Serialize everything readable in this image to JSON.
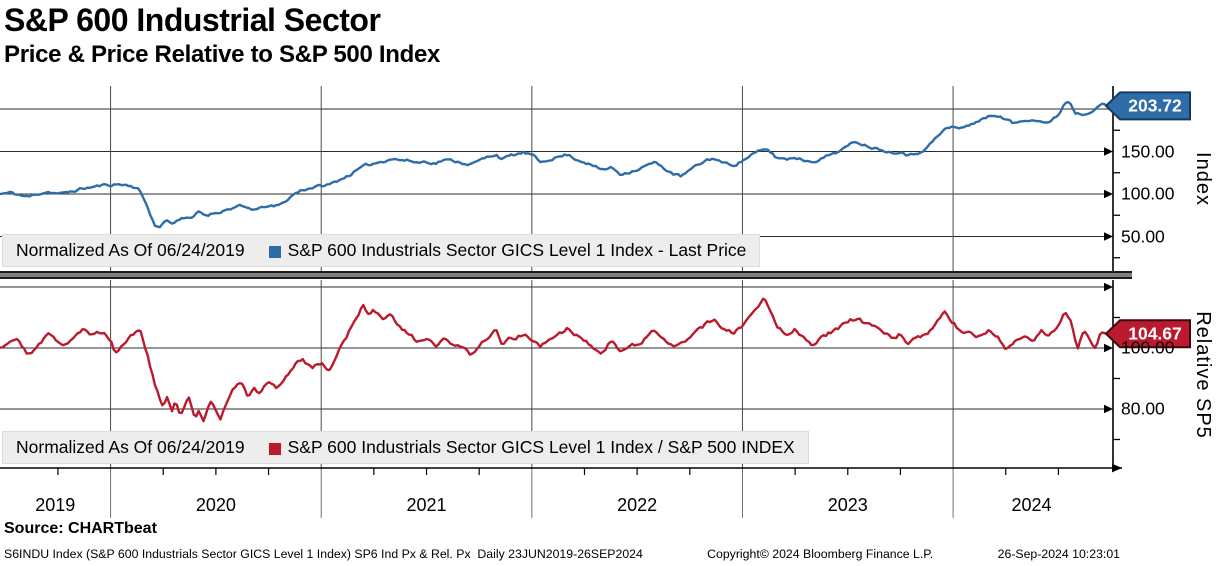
{
  "header": {
    "title": "S&P 600 Industrial Sector",
    "subtitle": "Price & Price Relative to S&P 500 Index"
  },
  "colors": {
    "index_line": "#2E6DA8",
    "index_tag_border": "#15395C",
    "relative_line": "#BB1A2E",
    "relative_tag_border": "#3E060F",
    "legend_bg": "#EDEDED",
    "grid": "#2B2B2B"
  },
  "panels": {
    "top": {
      "axis_title": "Index",
      "normalized": "Normalized As Of 06/24/2019",
      "series_label": "S&P 600 Industrials Sector GICS Level 1 Index - Last Price",
      "last_price_label": "203.72",
      "ticks": [
        {
          "value": 150,
          "label": "150.00"
        },
        {
          "value": 100,
          "label": "100.00"
        },
        {
          "value": 50,
          "label": "50.00"
        }
      ]
    },
    "bottom": {
      "axis_title": "Relative SP5",
      "normalized": "Normalized As Of 06/24/2019",
      "series_label": "S&P 600 Industrials Sector GICS Level 1 Index / S&P 500 INDEX",
      "last_price_label": "104.67",
      "ticks": [
        {
          "value": 100,
          "label": "100.00"
        },
        {
          "value": 80,
          "label": "80.00"
        }
      ]
    }
  },
  "x_axis": {
    "years": [
      "2019",
      "2020",
      "2021",
      "2022",
      "2023",
      "2024"
    ],
    "range": "23JUN2019-26SEP2024"
  },
  "footer": {
    "source": "Source: CHARTbeat",
    "description": "S6INDU Index (S&P 600 Industrials Sector GICS Level 1 Index) SP6 Ind Px & Rel. Px  Daily 23JUN2019-26SEP2024",
    "copyright": "Copyright© 2024 Bloomberg Finance L.P.",
    "timestamp": "26-Sep-2024 10:23:01"
  },
  "chart_data": [
    {
      "type": "line",
      "panel": "top",
      "title": "S&P 600 Industrials Sector GICS Level 1 Index - Last Price",
      "normalized_as_of": "06/24/2019",
      "color": "#2E6DA8",
      "tag_border": "#15395C",
      "last_price": 203.72,
      "ylabel": "Index",
      "ylim": [
        5,
        225
      ],
      "yticks": [
        50,
        100,
        150,
        200
      ],
      "x_unit": "decimal_year",
      "x_range": [
        2019.475,
        2024.745
      ],
      "seed": 11,
      "noise": 3.2,
      "points": [
        [
          2019.48,
          100
        ],
        [
          2019.53,
          101.5
        ],
        [
          2019.57,
          98.5
        ],
        [
          2019.61,
          96.5
        ],
        [
          2019.66,
          100.5
        ],
        [
          2019.7,
          103
        ],
        [
          2019.74,
          101
        ],
        [
          2019.78,
          100.5
        ],
        [
          2019.83,
          104
        ],
        [
          2019.87,
          106.5
        ],
        [
          2019.91,
          108
        ],
        [
          2019.96,
          110
        ],
        [
          2020.0,
          111
        ],
        [
          2020.04,
          111.5
        ],
        [
          2020.09,
          110
        ],
        [
          2020.13,
          107
        ],
        [
          2020.17,
          88
        ],
        [
          2020.21,
          63
        ],
        [
          2020.23,
          60
        ],
        [
          2020.26,
          69
        ],
        [
          2020.3,
          66
        ],
        [
          2020.34,
          73
        ],
        [
          2020.38,
          70
        ],
        [
          2020.42,
          79
        ],
        [
          2020.45,
          75
        ],
        [
          2020.49,
          77.5
        ],
        [
          2020.53,
          80
        ],
        [
          2020.57,
          83
        ],
        [
          2020.61,
          85.5
        ],
        [
          2020.65,
          83
        ],
        [
          2020.7,
          81.5
        ],
        [
          2020.74,
          86
        ],
        [
          2020.78,
          85
        ],
        [
          2020.82,
          89
        ],
        [
          2020.86,
          98
        ],
        [
          2020.9,
          104
        ],
        [
          2020.95,
          107.5
        ],
        [
          2021.0,
          109.5
        ],
        [
          2021.04,
          111
        ],
        [
          2021.08,
          116
        ],
        [
          2021.13,
          122
        ],
        [
          2021.17,
          128
        ],
        [
          2021.21,
          133
        ],
        [
          2021.25,
          136
        ],
        [
          2021.29,
          138.5
        ],
        [
          2021.33,
          142
        ],
        [
          2021.38,
          140
        ],
        [
          2021.42,
          139
        ],
        [
          2021.46,
          137
        ],
        [
          2021.5,
          138.5
        ],
        [
          2021.54,
          136
        ],
        [
          2021.58,
          140
        ],
        [
          2021.63,
          139
        ],
        [
          2021.67,
          137
        ],
        [
          2021.71,
          135
        ],
        [
          2021.75,
          139
        ],
        [
          2021.79,
          143.5
        ],
        [
          2021.83,
          147
        ],
        [
          2021.86,
          141
        ],
        [
          2021.9,
          145
        ],
        [
          2021.96,
          148.5
        ],
        [
          2022.0,
          146
        ],
        [
          2022.04,
          137
        ],
        [
          2022.08,
          141
        ],
        [
          2022.13,
          144
        ],
        [
          2022.17,
          146.5
        ],
        [
          2022.21,
          141
        ],
        [
          2022.25,
          138
        ],
        [
          2022.29,
          133
        ],
        [
          2022.33,
          128.5
        ],
        [
          2022.38,
          131
        ],
        [
          2022.42,
          123.5
        ],
        [
          2022.46,
          126
        ],
        [
          2022.5,
          129
        ],
        [
          2022.54,
          133
        ],
        [
          2022.58,
          137
        ],
        [
          2022.63,
          130
        ],
        [
          2022.67,
          124
        ],
        [
          2022.71,
          120.5
        ],
        [
          2022.75,
          128
        ],
        [
          2022.79,
          134
        ],
        [
          2022.83,
          140
        ],
        [
          2022.87,
          142
        ],
        [
          2022.91,
          136
        ],
        [
          2022.96,
          134.5
        ],
        [
          2023.0,
          139
        ],
        [
          2023.04,
          146
        ],
        [
          2023.08,
          150
        ],
        [
          2023.12,
          152
        ],
        [
          2023.16,
          143
        ],
        [
          2023.21,
          141
        ],
        [
          2023.25,
          143.5
        ],
        [
          2023.29,
          140
        ],
        [
          2023.33,
          138.5
        ],
        [
          2023.38,
          142
        ],
        [
          2023.42,
          147
        ],
        [
          2023.46,
          151
        ],
        [
          2023.5,
          156
        ],
        [
          2023.54,
          162
        ],
        [
          2023.58,
          158
        ],
        [
          2023.63,
          154
        ],
        [
          2023.67,
          152
        ],
        [
          2023.71,
          148.5
        ],
        [
          2023.75,
          151
        ],
        [
          2023.79,
          145.5
        ],
        [
          2023.83,
          148
        ],
        [
          2023.88,
          156
        ],
        [
          2023.92,
          166
        ],
        [
          2023.96,
          176
        ],
        [
          2024.0,
          179
        ],
        [
          2024.04,
          177
        ],
        [
          2024.08,
          182
        ],
        [
          2024.13,
          187
        ],
        [
          2024.17,
          191
        ],
        [
          2024.21,
          193
        ],
        [
          2024.25,
          188
        ],
        [
          2024.29,
          182.5
        ],
        [
          2024.33,
          186
        ],
        [
          2024.38,
          189
        ],
        [
          2024.42,
          185.5
        ],
        [
          2024.46,
          184
        ],
        [
          2024.5,
          193
        ],
        [
          2024.53,
          207
        ],
        [
          2024.55,
          210
        ],
        [
          2024.58,
          196
        ],
        [
          2024.62,
          194
        ],
        [
          2024.66,
          199
        ],
        [
          2024.7,
          206
        ],
        [
          2024.73,
          203.72
        ]
      ]
    },
    {
      "type": "line",
      "panel": "bottom",
      "title": "S&P 600 Industrials Sector GICS Level 1 Index / S&P 500 INDEX",
      "normalized_as_of": "06/24/2019",
      "color": "#BB1A2E",
      "tag_border": "#3E060F",
      "last_price": 104.67,
      "ylabel": "Relative SP5",
      "ylim": [
        61,
        122
      ],
      "yticks": [
        70,
        80,
        90,
        100,
        110,
        120
      ],
      "x_unit": "decimal_year",
      "x_range": [
        2019.475,
        2024.745
      ],
      "seed": 29,
      "noise": 1.4,
      "points": [
        [
          2019.48,
          100.5
        ],
        [
          2019.52,
          102.5
        ],
        [
          2019.56,
          103.5
        ],
        [
          2019.6,
          99
        ],
        [
          2019.63,
          98
        ],
        [
          2019.67,
          102
        ],
        [
          2019.71,
          104.5
        ],
        [
          2019.75,
          102.5
        ],
        [
          2019.79,
          101.5
        ],
        [
          2019.83,
          104.5
        ],
        [
          2019.87,
          106
        ],
        [
          2019.91,
          104
        ],
        [
          2019.96,
          105.5
        ],
        [
          2020.0,
          103
        ],
        [
          2020.02,
          98.5
        ],
        [
          2020.06,
          101.5
        ],
        [
          2020.1,
          104.5
        ],
        [
          2020.14,
          106
        ],
        [
          2020.17,
          99
        ],
        [
          2020.21,
          88
        ],
        [
          2020.23,
          84
        ],
        [
          2020.25,
          80
        ],
        [
          2020.27,
          84
        ],
        [
          2020.29,
          79
        ],
        [
          2020.31,
          82.5
        ],
        [
          2020.33,
          78
        ],
        [
          2020.35,
          81
        ],
        [
          2020.37,
          83.5
        ],
        [
          2020.4,
          77
        ],
        [
          2020.42,
          80.5
        ],
        [
          2020.44,
          76
        ],
        [
          2020.46,
          80
        ],
        [
          2020.48,
          83.5
        ],
        [
          2020.5,
          79
        ],
        [
          2020.52,
          76.5
        ],
        [
          2020.55,
          82
        ],
        [
          2020.58,
          86
        ],
        [
          2020.62,
          88.5
        ],
        [
          2020.65,
          84
        ],
        [
          2020.68,
          87
        ],
        [
          2020.71,
          84.5
        ],
        [
          2020.75,
          89
        ],
        [
          2020.79,
          87
        ],
        [
          2020.83,
          90.5
        ],
        [
          2020.87,
          94
        ],
        [
          2020.91,
          96.5
        ],
        [
          2020.96,
          93.5
        ],
        [
          2021.0,
          95.5
        ],
        [
          2021.04,
          92.5
        ],
        [
          2021.08,
          99
        ],
        [
          2021.13,
          105
        ],
        [
          2021.17,
          110
        ],
        [
          2021.2,
          114.5
        ],
        [
          2021.23,
          110.5
        ],
        [
          2021.25,
          112.5
        ],
        [
          2021.29,
          109
        ],
        [
          2021.33,
          110.5
        ],
        [
          2021.38,
          106
        ],
        [
          2021.42,
          104
        ],
        [
          2021.46,
          102
        ],
        [
          2021.5,
          103.5
        ],
        [
          2021.54,
          100
        ],
        [
          2021.58,
          102.5
        ],
        [
          2021.63,
          101
        ],
        [
          2021.67,
          99.5
        ],
        [
          2021.71,
          98
        ],
        [
          2021.75,
          101
        ],
        [
          2021.79,
          103.5
        ],
        [
          2021.83,
          105.5
        ],
        [
          2021.86,
          101
        ],
        [
          2021.9,
          103
        ],
        [
          2021.96,
          104.5
        ],
        [
          2022.0,
          103
        ],
        [
          2022.04,
          100
        ],
        [
          2022.08,
          102.5
        ],
        [
          2022.13,
          104.5
        ],
        [
          2022.17,
          106.5
        ],
        [
          2022.21,
          104
        ],
        [
          2022.25,
          103
        ],
        [
          2022.29,
          100.5
        ],
        [
          2022.33,
          99
        ],
        [
          2022.38,
          102.5
        ],
        [
          2022.42,
          98.5
        ],
        [
          2022.46,
          100.5
        ],
        [
          2022.5,
          101.5
        ],
        [
          2022.54,
          103.5
        ],
        [
          2022.58,
          105.5
        ],
        [
          2022.63,
          102
        ],
        [
          2022.67,
          100
        ],
        [
          2022.71,
          101.5
        ],
        [
          2022.75,
          104
        ],
        [
          2022.79,
          105.5
        ],
        [
          2022.83,
          108
        ],
        [
          2022.87,
          109.5
        ],
        [
          2022.91,
          106.5
        ],
        [
          2022.96,
          104.5
        ],
        [
          2023.0,
          107.5
        ],
        [
          2023.04,
          110.5
        ],
        [
          2023.08,
          114.5
        ],
        [
          2023.1,
          116.5
        ],
        [
          2023.13,
          112.5
        ],
        [
          2023.17,
          107
        ],
        [
          2023.21,
          105
        ],
        [
          2023.25,
          106.5
        ],
        [
          2023.29,
          103.5
        ],
        [
          2023.33,
          101.5
        ],
        [
          2023.38,
          103.5
        ],
        [
          2023.42,
          105
        ],
        [
          2023.46,
          106.5
        ],
        [
          2023.5,
          108
        ],
        [
          2023.54,
          110
        ],
        [
          2023.58,
          108
        ],
        [
          2023.63,
          107
        ],
        [
          2023.67,
          105
        ],
        [
          2023.71,
          103
        ],
        [
          2023.75,
          104.5
        ],
        [
          2023.79,
          101.5
        ],
        [
          2023.83,
          103
        ],
        [
          2023.88,
          104.5
        ],
        [
          2023.92,
          108
        ],
        [
          2023.96,
          111
        ],
        [
          2024.0,
          108.5
        ],
        [
          2024.04,
          104.5
        ],
        [
          2024.08,
          105.5
        ],
        [
          2024.13,
          103.5
        ],
        [
          2024.17,
          106
        ],
        [
          2024.21,
          104.5
        ],
        [
          2024.25,
          100
        ],
        [
          2024.29,
          102.5
        ],
        [
          2024.33,
          104
        ],
        [
          2024.38,
          103
        ],
        [
          2024.42,
          105.5
        ],
        [
          2024.46,
          104
        ],
        [
          2024.5,
          107.5
        ],
        [
          2024.53,
          111.5
        ],
        [
          2024.56,
          108
        ],
        [
          2024.59,
          99
        ],
        [
          2024.61,
          103.5
        ],
        [
          2024.63,
          105.5
        ],
        [
          2024.66,
          102
        ],
        [
          2024.68,
          100.5
        ],
        [
          2024.7,
          104.5
        ],
        [
          2024.73,
          104.67
        ]
      ]
    }
  ]
}
